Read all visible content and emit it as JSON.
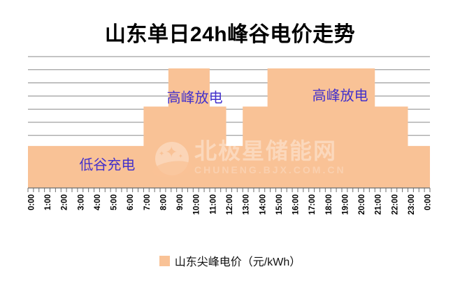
{
  "title": "山东单日24h峰谷电价走势",
  "colors": {
    "background": "#FFFFFF",
    "bar": "#F9C296",
    "grid": "#8A8A8A",
    "axis": "#6E6E6E",
    "tick_label": "#000000",
    "annotation": "#4331CB",
    "title": "#000000"
  },
  "legend": {
    "label": "山东尖峰电价（元/kWh）",
    "swatch_color": "#F9C296"
  },
  "watermark": {
    "logo": "bjx-star-logo",
    "text": "北极星储能网",
    "subtext": "CHUNENG.BJX.COM.CN"
  },
  "chart_data": {
    "type": "bar",
    "title": "山东单日24h峰谷电价走势",
    "series_name": "山东尖峰电价（元/kWh）",
    "x_labels": [
      "0:00",
      "1:00",
      "2:00",
      "3:00",
      "4:00",
      "5:00",
      "6:00",
      "7:00",
      "8:00",
      "9:00",
      "10:00",
      "11:00",
      "12:00",
      "13:00",
      "14:00",
      "15:00",
      "16:00",
      "17:00",
      "18:00",
      "19:00",
      "20:00",
      "21:00",
      "22:00",
      "23:00",
      "0:00"
    ],
    "x_minor_ticks_per_hour": 3,
    "resolution_minutes": 20,
    "ylim": [
      0,
      10
    ],
    "y_axis_labels": "none",
    "gridline_divisions": 10,
    "grid": true,
    "legend_position": "bottom",
    "levels": {
      "valley": 3.2,
      "flat": 6.2,
      "peak": 9.1
    },
    "segments": [
      {
        "start": "0:00",
        "end": "7:00",
        "start_h": 0,
        "end_h": 7,
        "level": "valley",
        "value": 3.2
      },
      {
        "start": "7:00",
        "end": "8:30",
        "start_h": 7,
        "end_h": 8.5,
        "level": "flat",
        "value": 6.2
      },
      {
        "start": "8:30",
        "end": "11:00",
        "start_h": 8.5,
        "end_h": 11,
        "level": "peak",
        "value": 9.1
      },
      {
        "start": "11:00",
        "end": "12:00",
        "start_h": 11,
        "end_h": 12,
        "level": "flat",
        "value": 6.2
      },
      {
        "start": "12:00",
        "end": "13:00",
        "start_h": 12,
        "end_h": 13,
        "level": "valley",
        "value": 3.2
      },
      {
        "start": "13:00",
        "end": "14:30",
        "start_h": 13,
        "end_h": 14.5,
        "level": "flat",
        "value": 6.2
      },
      {
        "start": "14:30",
        "end": "21:00",
        "start_h": 14.5,
        "end_h": 21,
        "level": "peak",
        "value": 9.1
      },
      {
        "start": "21:00",
        "end": "23:00",
        "start_h": 21,
        "end_h": 23,
        "level": "flat",
        "value": 6.2
      },
      {
        "start": "23:00",
        "end": "24:00",
        "start_h": 23,
        "end_h": 24,
        "level": "valley",
        "value": 3.2
      }
    ],
    "annotations": [
      {
        "text": "低谷充电",
        "t_hours": 4.8,
        "value": 1.85
      },
      {
        "text": "高峰放电",
        "t_hours": 10.1,
        "value": 6.95
      },
      {
        "text": "高峰放电",
        "t_hours": 18.9,
        "value": 7.15
      }
    ]
  }
}
